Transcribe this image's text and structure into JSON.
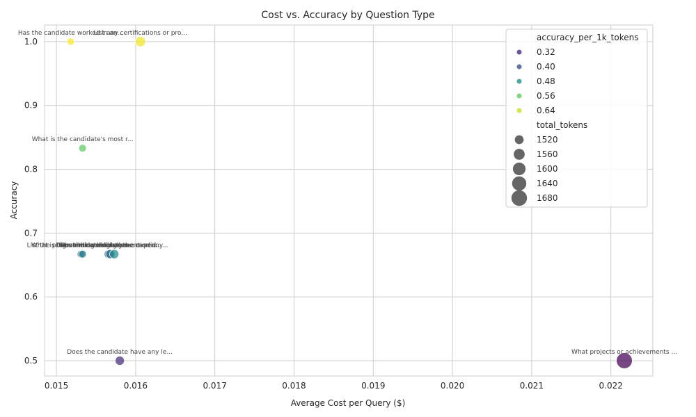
{
  "chart_data": {
    "type": "scatter",
    "title": "Cost vs. Accuracy by Question Type",
    "xlabel": "Average Cost per Query ($)",
    "ylabel": "Accuracy",
    "xlim": [
      0.01485,
      0.02253
    ],
    "ylim": [
      0.476,
      1.026
    ],
    "xticks": [
      "0.015",
      "0.016",
      "0.017",
      "0.018",
      "0.019",
      "0.020",
      "0.021",
      "0.022"
    ],
    "xtick_values": [
      0.015,
      0.016,
      0.017,
      0.018,
      0.019,
      0.02,
      0.021,
      0.022
    ],
    "yticks": [
      "0.5",
      "0.6",
      "0.7",
      "0.8",
      "0.9",
      "1.0"
    ],
    "ytick_values": [
      0.5,
      0.6,
      0.7,
      0.8,
      0.9,
      1.0
    ],
    "grid": true,
    "legend_placement": "top-right",
    "colormap": "viridis",
    "points": [
      {
        "label": "Has the candidate worked in an...",
        "x": 0.01518,
        "y": 1.0,
        "accuracy_per_1k_tokens": 0.67,
        "total_tokens": 1495,
        "color": "#fde725"
      },
      {
        "label": "List any certifications or pro...",
        "x": 0.01606,
        "y": 1.0,
        "accuracy_per_1k_tokens": 0.64,
        "total_tokens": 1545,
        "color": "#f0e624"
      },
      {
        "label": "What is the candidate's most r...",
        "x": 0.01533,
        "y": 0.833,
        "accuracy_per_1k_tokens": 0.56,
        "total_tokens": 1500,
        "color": "#5ec962"
      },
      {
        "label": "List the programming languages...",
        "x": 0.01531,
        "y": 0.667,
        "accuracy_per_1k_tokens": 0.45,
        "total_tokens": 1500,
        "color": "#2a788e"
      },
      {
        "label": "What is the candidate's highes...",
        "x": 0.01533,
        "y": 0.667,
        "accuracy_per_1k_tokens": 0.45,
        "total_tokens": 1500,
        "color": "#2c7c8e"
      },
      {
        "label": "Does the candidate have experi...",
        "x": 0.01566,
        "y": 0.667,
        "accuracy_per_1k_tokens": 0.43,
        "total_tokens": 1520,
        "color": "#2d708e"
      },
      {
        "label": "What industries has the candid...",
        "x": 0.01568,
        "y": 0.667,
        "accuracy_per_1k_tokens": 0.43,
        "total_tokens": 1522,
        "color": "#306a8e"
      },
      {
        "label": "Does the candidate mention any...",
        "x": 0.01573,
        "y": 0.667,
        "accuracy_per_1k_tokens": 0.46,
        "total_tokens": 1525,
        "color": "#238a8d"
      },
      {
        "label": "Does the candidate have any le...",
        "x": 0.0158,
        "y": 0.5,
        "accuracy_per_1k_tokens": 0.32,
        "total_tokens": 1525,
        "color": "#472d7b"
      },
      {
        "label": "What projects or achievements ...",
        "x": 0.02217,
        "y": 0.5,
        "accuracy_per_1k_tokens": 0.29,
        "total_tokens": 1690,
        "color": "#440154"
      }
    ],
    "legend": {
      "hue_title": "accuracy_per_1k_tokens",
      "hue_entries": [
        {
          "label": "0.32",
          "color": "#472d7b"
        },
        {
          "label": "0.40",
          "color": "#3b528b"
        },
        {
          "label": "0.48",
          "color": "#21918c"
        },
        {
          "label": "0.56",
          "color": "#5ec962"
        },
        {
          "label": "0.64",
          "color": "#c8e020"
        }
      ],
      "size_title": "total_tokens",
      "size_entries": [
        {
          "label": "1520",
          "value": 1520
        },
        {
          "label": "1560",
          "value": 1560
        },
        {
          "label": "1600",
          "value": 1600
        },
        {
          "label": "1640",
          "value": 1640
        },
        {
          "label": "1680",
          "value": 1680
        }
      ],
      "size_color": "#666666"
    }
  }
}
